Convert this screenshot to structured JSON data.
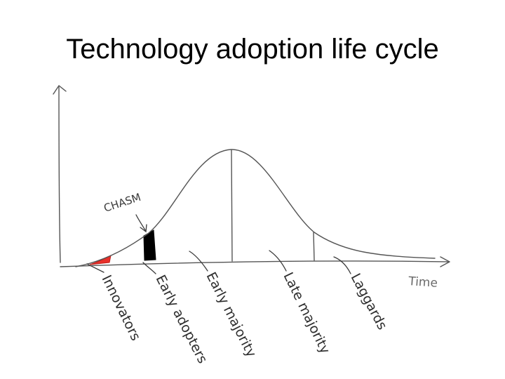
{
  "title": "Technology adoption life cycle",
  "axis": {
    "x_label": "Time"
  },
  "chasm": {
    "label": "CHASM",
    "color": "#000000"
  },
  "segments": [
    {
      "id": "innovators",
      "label": "Innovators",
      "shade_color": "#e8302a"
    },
    {
      "id": "early-adopters",
      "label": "Early adopters"
    },
    {
      "id": "early-majority",
      "label": "Early majority"
    },
    {
      "id": "late-majority",
      "label": "Late majority"
    },
    {
      "id": "laggards",
      "label": "Laggards"
    }
  ]
}
